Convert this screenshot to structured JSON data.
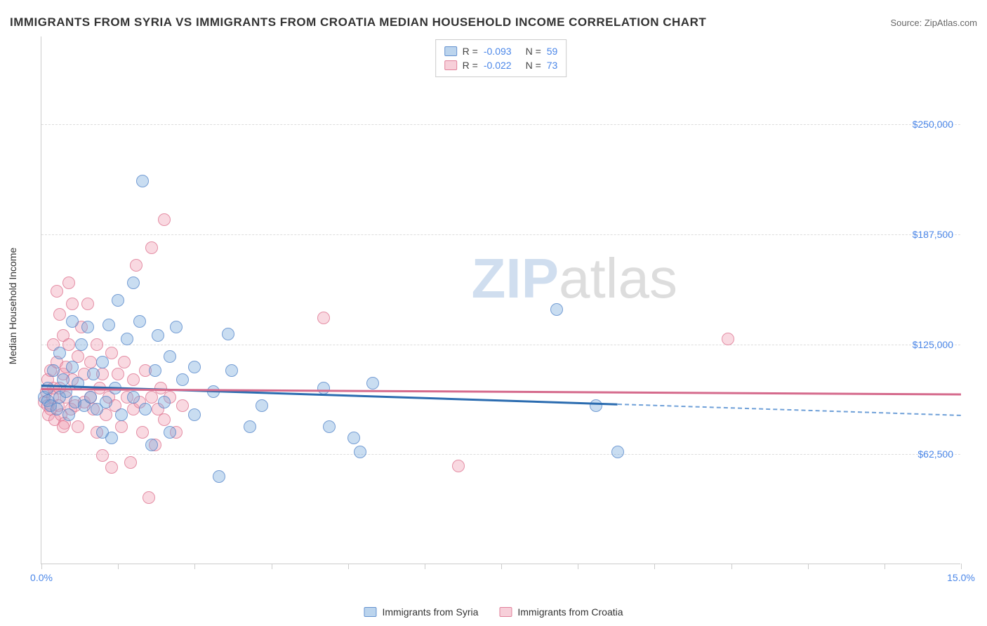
{
  "header": {
    "title": "IMMIGRANTS FROM SYRIA VS IMMIGRANTS FROM CROATIA MEDIAN HOUSEHOLD INCOME CORRELATION CHART",
    "source": "Source: ZipAtlas.com"
  },
  "chart": {
    "type": "scatter",
    "y_axis_label": "Median Household Income",
    "background_color": "#ffffff",
    "grid_color": "#dddddd",
    "axis_color": "#cccccc",
    "tick_label_color": "#4a86e8",
    "xlim": [
      0,
      15
    ],
    "ylim": [
      0,
      300000
    ],
    "x_ticks": [
      0,
      1.25,
      2.5,
      3.75,
      5.0,
      6.25,
      7.5,
      8.75,
      10.0,
      11.25,
      12.5,
      13.75,
      15.0
    ],
    "x_tick_labels": {
      "0": "0.0%",
      "15": "15.0%"
    },
    "y_gridlines": [
      62500,
      125000,
      187500,
      250000
    ],
    "y_tick_labels": {
      "62500": "$62,500",
      "125000": "$125,000",
      "187500": "$187,500",
      "250000": "$250,000"
    },
    "marker_radius": 9,
    "series": [
      {
        "name": "Immigrants from Syria",
        "color_fill": "rgba(120,170,220,0.4)",
        "color_border": "rgba(80,130,200,0.7)",
        "trend_color": "#2b6cb0",
        "class": "blue",
        "stats": {
          "R": "-0.093",
          "N": "59"
        },
        "trend": {
          "y_at_xmin": 102000,
          "y_at_xmax": 85000,
          "solid_until_x": 9.4
        },
        "points": [
          [
            0.05,
            95000
          ],
          [
            0.1,
            93000
          ],
          [
            0.1,
            100000
          ],
          [
            0.15,
            90000
          ],
          [
            0.2,
            110000
          ],
          [
            0.25,
            88000
          ],
          [
            0.3,
            120000
          ],
          [
            0.3,
            95000
          ],
          [
            0.35,
            105000
          ],
          [
            0.4,
            98000
          ],
          [
            0.45,
            85000
          ],
          [
            0.5,
            112000
          ],
          [
            0.5,
            138000
          ],
          [
            0.55,
            92000
          ],
          [
            0.6,
            103000
          ],
          [
            0.65,
            125000
          ],
          [
            0.7,
            90000
          ],
          [
            0.75,
            135000
          ],
          [
            0.8,
            95000
          ],
          [
            0.85,
            108000
          ],
          [
            0.9,
            88000
          ],
          [
            1.0,
            115000
          ],
          [
            1.05,
            92000
          ],
          [
            1.1,
            136000
          ],
          [
            1.15,
            72000
          ],
          [
            1.2,
            100000
          ],
          [
            1.25,
            150000
          ],
          [
            1.3,
            85000
          ],
          [
            1.4,
            128000
          ],
          [
            1.5,
            95000
          ],
          [
            1.5,
            160000
          ],
          [
            1.6,
            138000
          ],
          [
            1.65,
            218000
          ],
          [
            1.7,
            88000
          ],
          [
            1.8,
            68000
          ],
          [
            1.85,
            110000
          ],
          [
            1.9,
            130000
          ],
          [
            2.0,
            92000
          ],
          [
            2.1,
            75000
          ],
          [
            2.1,
            118000
          ],
          [
            2.2,
            135000
          ],
          [
            2.3,
            105000
          ],
          [
            2.5,
            85000
          ],
          [
            2.5,
            112000
          ],
          [
            2.8,
            98000
          ],
          [
            2.9,
            50000
          ],
          [
            3.05,
            131000
          ],
          [
            3.1,
            110000
          ],
          [
            3.4,
            78000
          ],
          [
            3.6,
            90000
          ],
          [
            4.6,
            100000
          ],
          [
            4.7,
            78000
          ],
          [
            5.1,
            72000
          ],
          [
            5.2,
            64000
          ],
          [
            5.4,
            103000
          ],
          [
            8.4,
            145000
          ],
          [
            9.05,
            90000
          ],
          [
            9.4,
            64000
          ],
          [
            1.0,
            75000
          ]
        ]
      },
      {
        "name": "Immigrants from Croatia",
        "color_fill": "rgba(240,160,180,0.4)",
        "color_border": "rgba(220,110,140,0.7)",
        "trend_color": "#d56a8c",
        "class": "pink",
        "stats": {
          "R": "-0.022",
          "N": "73"
        },
        "trend": {
          "y_at_xmin": 100000,
          "y_at_xmax": 97000,
          "solid_until_x": 15.0
        },
        "points": [
          [
            0.05,
            92000
          ],
          [
            0.08,
            98000
          ],
          [
            0.1,
            90000
          ],
          [
            0.1,
            105000
          ],
          [
            0.12,
            85000
          ],
          [
            0.15,
            110000
          ],
          [
            0.15,
            88000
          ],
          [
            0.18,
            95000
          ],
          [
            0.2,
            125000
          ],
          [
            0.2,
            100000
          ],
          [
            0.22,
            82000
          ],
          [
            0.25,
            115000
          ],
          [
            0.25,
            155000
          ],
          [
            0.28,
            90000
          ],
          [
            0.3,
            100000
          ],
          [
            0.3,
            142000
          ],
          [
            0.32,
            85000
          ],
          [
            0.35,
            108000
          ],
          [
            0.35,
            130000
          ],
          [
            0.38,
            80000
          ],
          [
            0.4,
            95000
          ],
          [
            0.4,
            112000
          ],
          [
            0.45,
            125000
          ],
          [
            0.45,
            160000
          ],
          [
            0.48,
            88000
          ],
          [
            0.5,
            105000
          ],
          [
            0.5,
            148000
          ],
          [
            0.55,
            90000
          ],
          [
            0.6,
            118000
          ],
          [
            0.6,
            78000
          ],
          [
            0.65,
            135000
          ],
          [
            0.7,
            92000
          ],
          [
            0.7,
            108000
          ],
          [
            0.75,
            148000
          ],
          [
            0.8,
            95000
          ],
          [
            0.8,
            115000
          ],
          [
            0.85,
            88000
          ],
          [
            0.9,
            75000
          ],
          [
            0.9,
            125000
          ],
          [
            0.95,
            100000
          ],
          [
            1.0,
            62000
          ],
          [
            1.0,
            108000
          ],
          [
            1.05,
            85000
          ],
          [
            1.1,
            95000
          ],
          [
            1.15,
            55000
          ],
          [
            1.15,
            120000
          ],
          [
            1.2,
            90000
          ],
          [
            1.25,
            108000
          ],
          [
            1.3,
            78000
          ],
          [
            1.35,
            115000
          ],
          [
            1.4,
            95000
          ],
          [
            1.45,
            58000
          ],
          [
            1.5,
            88000
          ],
          [
            1.5,
            105000
          ],
          [
            1.55,
            170000
          ],
          [
            1.6,
            92000
          ],
          [
            1.65,
            75000
          ],
          [
            1.7,
            110000
          ],
          [
            1.75,
            38000
          ],
          [
            1.8,
            95000
          ],
          [
            1.8,
            180000
          ],
          [
            1.85,
            68000
          ],
          [
            1.9,
            88000
          ],
          [
            1.95,
            100000
          ],
          [
            2.0,
            82000
          ],
          [
            2.0,
            196000
          ],
          [
            2.1,
            95000
          ],
          [
            2.2,
            75000
          ],
          [
            2.3,
            90000
          ],
          [
            4.6,
            140000
          ],
          [
            6.8,
            56000
          ],
          [
            11.2,
            128000
          ],
          [
            0.35,
            78000
          ]
        ]
      }
    ],
    "legend_bottom": [
      {
        "label": "Immigrants from Syria",
        "class": "blue"
      },
      {
        "label": "Immigrants from Croatia",
        "class": "pink"
      }
    ],
    "watermark": "ZIPatlas"
  }
}
